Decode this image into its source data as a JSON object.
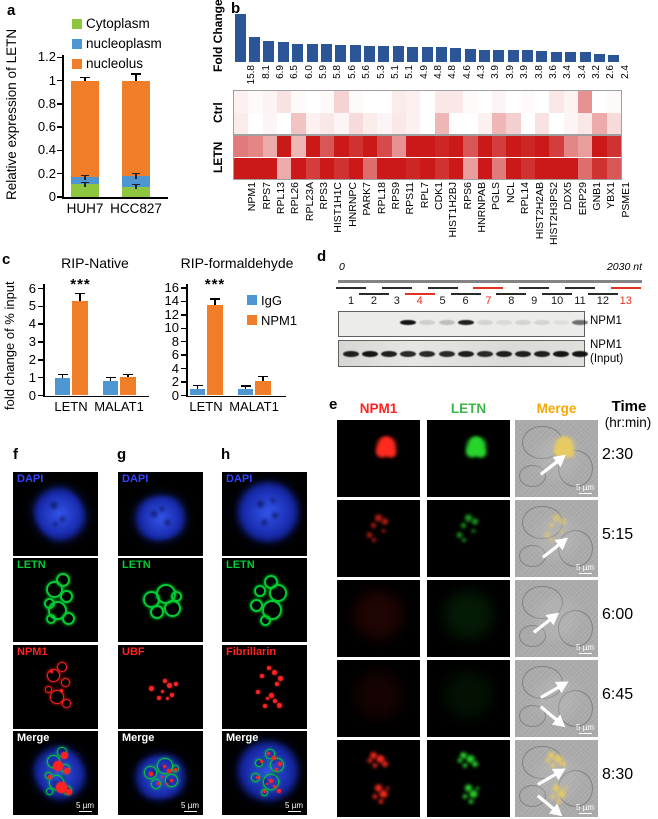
{
  "figure": {
    "panel_labels": {
      "a": "a",
      "b": "b",
      "c": "c",
      "d": "d",
      "e": "e",
      "f": "f",
      "g": "g",
      "h": "h"
    }
  },
  "panel_a": {
    "ylabel": "Relative expression of LETN",
    "yticks": [
      "0",
      "0.2",
      "0.4",
      "0.6",
      "0.8",
      "1",
      "1.2"
    ],
    "chart_data": {
      "type": "stacked_bar",
      "categories": [
        "HUH7",
        "HCC827"
      ],
      "ylim": [
        0,
        1.2
      ],
      "series": [
        {
          "name": "Cytoplasm",
          "color": "#8EC63F",
          "values": [
            0.11,
            0.09
          ]
        },
        {
          "name": "nucleoplasm",
          "color": "#4D96D2",
          "values": [
            0.06,
            0.09
          ]
        },
        {
          "name": "nucleolus",
          "color": "#F07D28",
          "values": [
            0.83,
            0.82
          ]
        }
      ],
      "top_errors": [
        0.035,
        0.065
      ],
      "boundary_errors": [
        [
          0.02,
          0.02
        ],
        [
          0.025,
          0.025
        ]
      ]
    }
  },
  "panel_b": {
    "left_labels": [
      "Fold Change",
      "Ctrl",
      "LETN"
    ],
    "chart_data": {
      "type": "bar+heatmap",
      "bar_color": "#2B5596",
      "heatmap_max_color": "#C80D0D",
      "genes": [
        "NPM1",
        "RPS7",
        "RPL13",
        "RPL26",
        "RPL23A",
        "RPS3",
        "HIST1H1C",
        "HNRNPC",
        "PARK7",
        "RPL18",
        "RPS9",
        "RPS11",
        "RPL7",
        "CDK1",
        "HIST1H2BJ",
        "RPS6",
        "HNRNPAB",
        "PGLS",
        "NCL",
        "RPL14",
        "HIST2H2AB",
        "HIST2H3PS2",
        "DDX5",
        "ERP29",
        "GNB1",
        "YBX1",
        "PSME1"
      ],
      "fold_change": [
        15.8,
        8.1,
        6.9,
        6.5,
        6.0,
        5.9,
        5.8,
        5.6,
        5.6,
        5.3,
        5.1,
        5.1,
        4.9,
        4.8,
        4.8,
        4.6,
        4.3,
        3.9,
        3.9,
        3.9,
        3.8,
        3.6,
        3.4,
        3.4,
        3.2,
        2.6,
        2.4
      ],
      "heatmap_rows": {
        "ctrl": [
          [
            0.06,
            0.02,
            0.05,
            0.12,
            0.02,
            0,
            0.02,
            0.18,
            0.02,
            0,
            0,
            0.08,
            0.06,
            0,
            0.1,
            0.1,
            0.02,
            0,
            0.04,
            0,
            0.02,
            0,
            0.1,
            0.05,
            0.45,
            0,
            0.02
          ],
          [
            0.08,
            0,
            0.04,
            0,
            0.25,
            0.06,
            0.1,
            0.04,
            0.15,
            0.08,
            0.04,
            0.1,
            0.06,
            0,
            0.3,
            0,
            0,
            0.06,
            0.3,
            0.2,
            0,
            0.12,
            0,
            0.04,
            0.1,
            0.35,
            0.15
          ]
        ],
        "letn": [
          [
            0.55,
            0.5,
            0.35,
            0.95,
            0.3,
            0.95,
            0.7,
            0.95,
            0.85,
            0.95,
            0.75,
            0.45,
            0.95,
            0.95,
            0.9,
            0.95,
            0.7,
            0.95,
            0.8,
            0.95,
            0.9,
            0.95,
            0.8,
            0.5,
            0.4,
            0.95,
            0.85
          ],
          [
            0.95,
            0.95,
            0.95,
            0.35,
            0.95,
            0.8,
            0.95,
            0.85,
            0.95,
            0.6,
            0.95,
            0.95,
            0.9,
            0.95,
            0.85,
            0.95,
            0.4,
            0.95,
            0.55,
            0.95,
            0.85,
            0.95,
            0.95,
            0.95,
            0.6,
            0.85,
            0.7
          ]
        ]
      }
    }
  },
  "panel_c": {
    "ylabel": "fold change of % input",
    "legend": [
      {
        "label": "IgG",
        "color": "#4D96D2"
      },
      {
        "label": "NPM1",
        "color": "#F07D28"
      }
    ],
    "charts": [
      {
        "title": "RIP-Native",
        "chart_data": {
          "type": "bar",
          "categories": [
            "LETN",
            "MALAT1"
          ],
          "ylim": [
            0,
            6
          ],
          "ytick_step": 1,
          "series": [
            {
              "name": "IgG",
              "values": [
                1.0,
                0.8
              ],
              "errors": [
                0.22,
                0.25
              ]
            },
            {
              "name": "NPM1",
              "values": [
                5.3,
                1.05
              ],
              "errors": [
                0.45,
                0.18
              ]
            }
          ],
          "significance": [
            {
              "label": "***",
              "category": "LETN",
              "series": "NPM1"
            }
          ]
        }
      },
      {
        "title": "RIP-formaldehyde",
        "chart_data": {
          "type": "bar",
          "categories": [
            "LETN",
            "MALAT1"
          ],
          "ylim": [
            0,
            16
          ],
          "ytick_step": 2,
          "series": [
            {
              "name": "IgG",
              "values": [
                1.0,
                1.0
              ],
              "errors": [
                0.6,
                0.55
              ]
            },
            {
              "name": "NPM1",
              "values": [
                13.5,
                2.2
              ],
              "errors": [
                1.0,
                0.75
              ]
            }
          ],
          "significance": [
            {
              "label": "***",
              "category": "LETN",
              "series": "NPM1"
            }
          ]
        }
      }
    ]
  },
  "panel_d": {
    "scale_start": "0",
    "scale_end": "2030 nt",
    "lanes": [
      "1",
      "2",
      "3",
      "4",
      "5",
      "6",
      "7",
      "8",
      "9",
      "10",
      "11",
      "12",
      "13"
    ],
    "red_lanes": [
      4,
      7,
      13
    ],
    "red_color": "#E03222",
    "blots": [
      {
        "label": "NPM1",
        "band_intensities": [
          0,
          0,
          0,
          0.95,
          0.12,
          0.2,
          0.9,
          0.1,
          0.08,
          0.1,
          0.1,
          0.05,
          0.55
        ]
      },
      {
        "label": "NPM1",
        "label2": "(Input)",
        "band_intensities": [
          0.9,
          0.95,
          0.9,
          0.85,
          0.85,
          0.85,
          0.9,
          0.85,
          0.9,
          0.9,
          0.9,
          0.95,
          0.95
        ]
      }
    ]
  },
  "panel_e": {
    "headers": [
      {
        "label": "NPM1",
        "color": "#FF2222"
      },
      {
        "label": "LETN",
        "color": "#3DB549"
      },
      {
        "label": "Merge",
        "color": "#F5A800"
      }
    ],
    "time_title": "Time",
    "time_unit": "(hr:min)",
    "scale_label": "5 µm",
    "channel_colors": {
      "red": "#FF2A1E",
      "green": "#27D42C",
      "merge_yellow": "#E8CB62"
    },
    "rows": [
      {
        "time": "2:30",
        "pattern": "cluster",
        "level": 1.0,
        "arrows": 1
      },
      {
        "time": "5:15",
        "pattern": "puncta-few",
        "level": 0.75,
        "arrows": 1
      },
      {
        "time": "6:00",
        "pattern": "wash",
        "level": 0.12,
        "arrows": 1
      },
      {
        "time": "6:45",
        "pattern": "wash",
        "level": 0.08,
        "arrows": 2
      },
      {
        "time": "8:30",
        "pattern": "puncta-many",
        "level": 1.0,
        "arrows": 2
      }
    ]
  },
  "panel_fgh": {
    "row_labels": [
      "DAPI",
      "LETN",
      "",
      "Merge"
    ],
    "label_colors": {
      "dapi": "#3344FF",
      "letn": "#00CC33",
      "red": "#FF2222",
      "merge": "#FFFFFF"
    },
    "scale_label": "5 µm",
    "columns": [
      {
        "key": "f",
        "red_label": "NPM1",
        "red_style": "rings"
      },
      {
        "key": "g",
        "red_label": "UBF",
        "red_style": "dots"
      },
      {
        "key": "h",
        "red_label": "Fibrillarin",
        "red_style": "dots"
      }
    ]
  }
}
